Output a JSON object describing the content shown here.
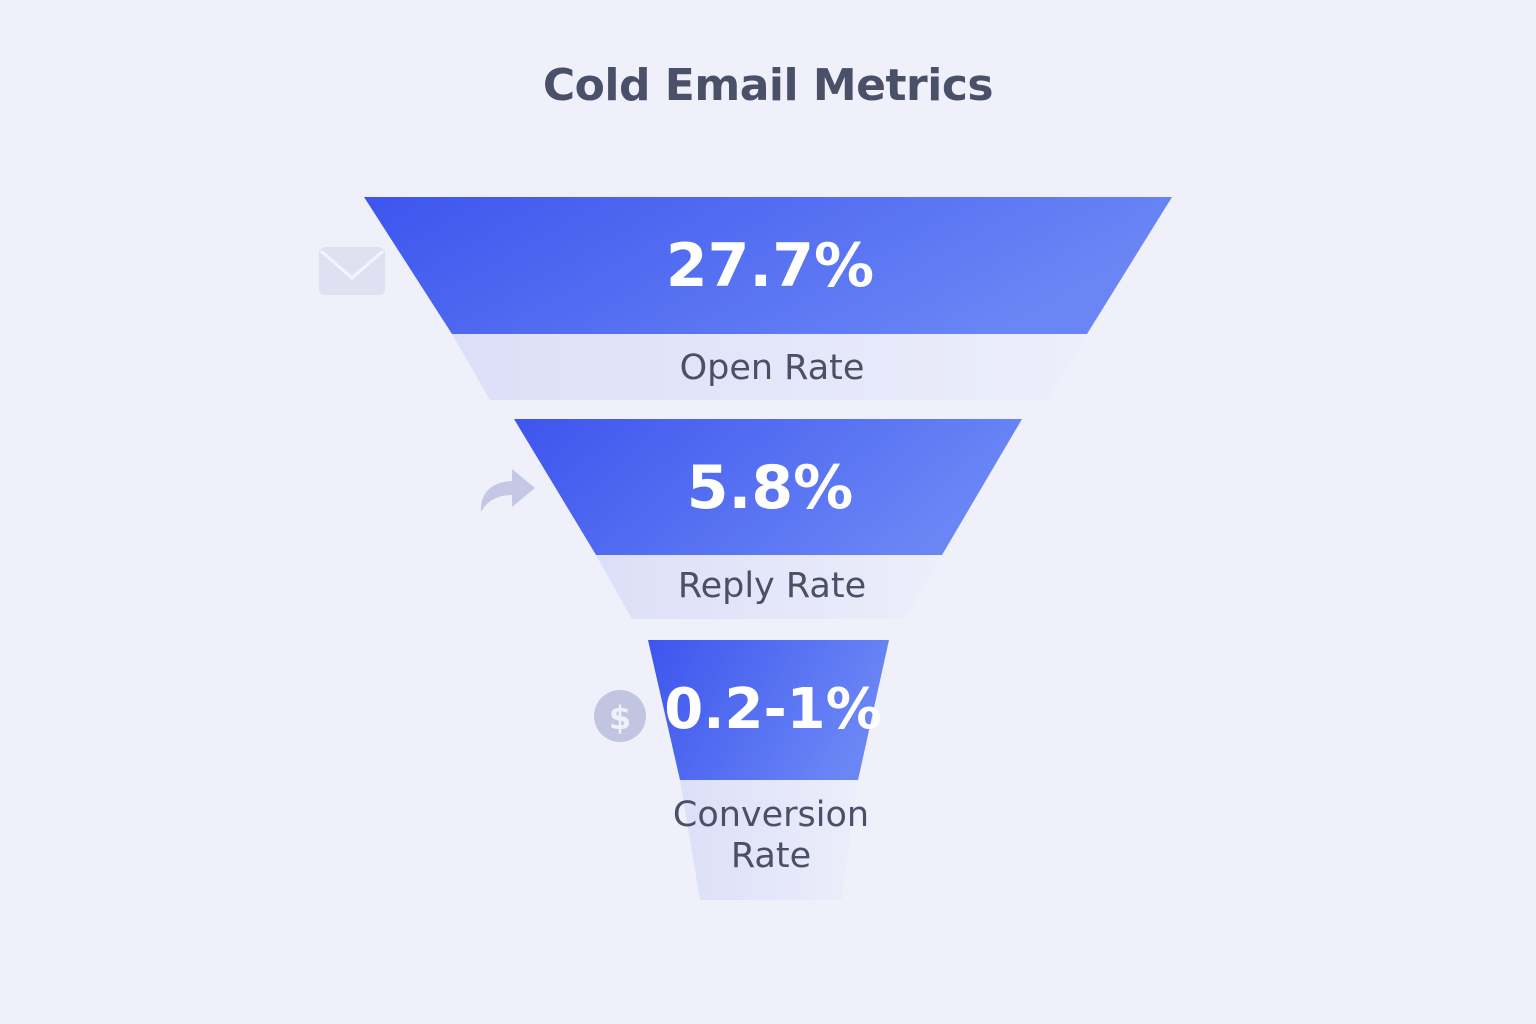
{
  "chart_data": {
    "type": "funnel",
    "title": "Cold Email Metrics",
    "stages": [
      {
        "label": "Open Rate",
        "value_text": "27.7%",
        "icon": "envelope-icon"
      },
      {
        "label": "Reply Rate",
        "value_text": "5.8%",
        "icon": "reply-arrow-icon"
      },
      {
        "label_lines": [
          "Conversion",
          "Rate"
        ],
        "value_text": "0.2-1%",
        "icon": "dollar-coin-icon"
      }
    ],
    "colors": {
      "stage_fill_start": "#3d55ee",
      "stage_fill_end": "#6a86f5",
      "label_band": "#e2e5f8",
      "text": "#4a5068",
      "background": "#eff0fa"
    }
  }
}
